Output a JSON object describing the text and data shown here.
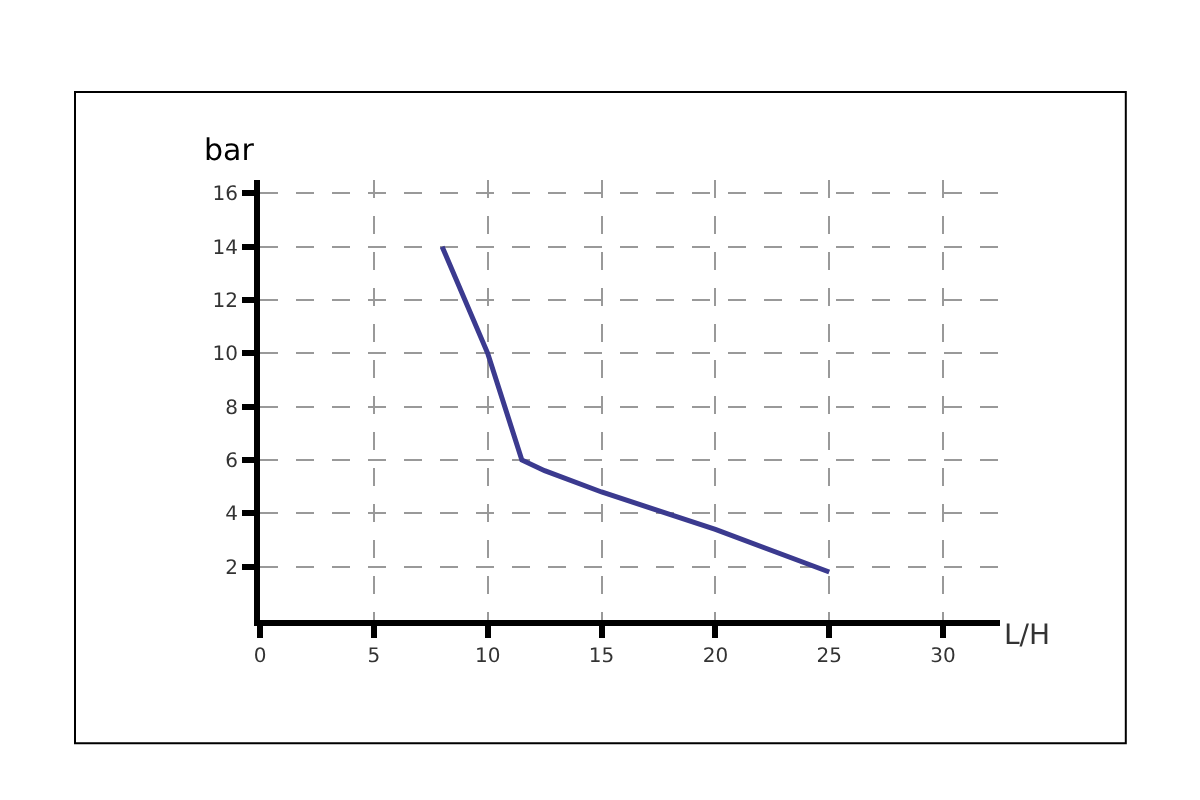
{
  "chart_data": {
    "type": "line",
    "xlabel": "L/H",
    "ylabel": "bar",
    "x": [
      8,
      10,
      11.5,
      12.5,
      15,
      20,
      25
    ],
    "series": [
      {
        "color": "#3b3a8f",
        "values": [
          14,
          10,
          6,
          5.6,
          4.8,
          3.4,
          1.8
        ]
      }
    ],
    "xlim": [
      0,
      32.5
    ],
    "xticks": [
      0,
      5,
      10,
      15,
      20,
      25,
      30
    ],
    "ylim": [
      0,
      16.5
    ],
    "yticks": [
      2,
      4,
      6,
      8,
      10,
      12,
      14,
      16
    ],
    "grid": true,
    "marker": "none",
    "line_style": "solid"
  }
}
